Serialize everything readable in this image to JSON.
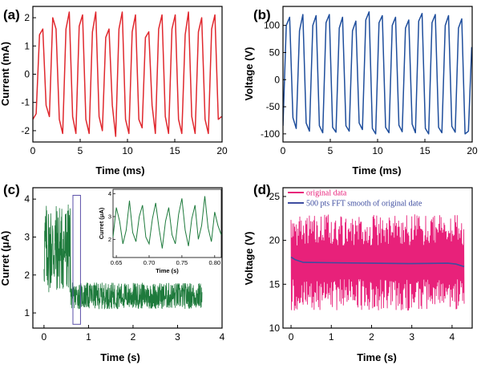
{
  "chart_data": [
    {
      "id": "a",
      "panel_label": "(a)",
      "type": "line",
      "xlabel": "Time (ms)",
      "ylabel": "Current (mA)",
      "xlim": [
        0,
        20
      ],
      "ylim": [
        -2.4,
        2.4
      ],
      "xticks": [
        0,
        5,
        10,
        15,
        20
      ],
      "yticks": [
        -2,
        -1,
        0,
        1,
        2
      ],
      "series": [
        {
          "color": "#e0282e",
          "x": [
            0,
            0.35,
            0.7,
            1.05,
            1.4,
            1.75,
            2.1,
            2.45,
            2.8,
            3.15,
            3.5,
            3.85,
            4.2,
            4.55,
            4.9,
            5.25,
            5.6,
            5.95,
            6.3,
            6.65,
            7.0,
            7.35,
            7.7,
            8.05,
            8.4,
            8.75,
            9.1,
            9.45,
            9.8,
            10.15,
            10.5,
            10.85,
            11.2,
            11.55,
            11.9,
            12.25,
            12.6,
            12.95,
            13.3,
            13.65,
            14.0,
            14.35,
            14.7,
            15.05,
            15.4,
            15.75,
            16.1,
            16.45,
            16.8,
            17.15,
            17.5,
            17.85,
            18.2,
            18.55,
            18.9,
            19.25,
            19.6,
            19.95
          ],
          "y": [
            -1.6,
            -1.4,
            1.4,
            1.6,
            -1.1,
            -1.5,
            2.0,
            1.6,
            -1.6,
            -2.1,
            1.6,
            2.2,
            -1.5,
            -2.1,
            1.7,
            2.1,
            -1.6,
            -2.1,
            1.5,
            2.2,
            -1.5,
            -2.0,
            1.3,
            1.6,
            -1.1,
            -2.2,
            1.6,
            2.2,
            -1.6,
            -2.1,
            1.5,
            2.1,
            -1.6,
            -1.9,
            1.3,
            1.5,
            -1.1,
            -2.1,
            1.6,
            2.1,
            -1.5,
            -2.1,
            1.6,
            2.1,
            -1.6,
            -2.1,
            1.4,
            2.2,
            -1.5,
            -2.1,
            1.5,
            2.0,
            -1.6,
            -2.1,
            1.6,
            2.1,
            -1.6,
            -1.5
          ]
        }
      ]
    },
    {
      "id": "b",
      "panel_label": "(b)",
      "type": "line",
      "xlabel": "Time (ms)",
      "ylabel": "Voltage (V)",
      "xlim": [
        0,
        20
      ],
      "ylim": [
        -115,
        135
      ],
      "xticks": [
        0,
        5,
        10,
        15,
        20
      ],
      "yticks": [
        -100,
        -50,
        0,
        50,
        100
      ],
      "series": [
        {
          "color": "#1f4e9c",
          "x": [
            0,
            0.35,
            0.7,
            1.05,
            1.4,
            1.75,
            2.1,
            2.45,
            2.8,
            3.15,
            3.5,
            3.85,
            4.2,
            4.55,
            4.9,
            5.25,
            5.6,
            5.95,
            6.3,
            6.65,
            7.0,
            7.35,
            7.7,
            8.05,
            8.4,
            8.75,
            9.1,
            9.45,
            9.8,
            10.15,
            10.5,
            10.85,
            11.2,
            11.55,
            11.9,
            12.25,
            12.6,
            12.95,
            13.3,
            13.65,
            14.0,
            14.35,
            14.7,
            15.05,
            15.4,
            15.75,
            16.1,
            16.45,
            16.8,
            17.15,
            17.5,
            17.85,
            18.2,
            18.55,
            18.9,
            19.25,
            19.6,
            19.95
          ],
          "y": [
            -85,
            100,
            115,
            -70,
            -90,
            90,
            120,
            -80,
            -95,
            100,
            118,
            -85,
            -98,
            105,
            120,
            -88,
            -97,
            95,
            115,
            -85,
            -95,
            90,
            108,
            -80,
            -92,
            110,
            125,
            -90,
            -100,
            105,
            118,
            -88,
            -98,
            100,
            115,
            -84,
            -96,
            95,
            110,
            -82,
            -98,
            108,
            122,
            -90,
            -100,
            105,
            120,
            -88,
            -98,
            100,
            118,
            -86,
            -97,
            95,
            112,
            -100,
            -95,
            60
          ]
        }
      ]
    },
    {
      "id": "c",
      "panel_label": "(c)",
      "type": "line",
      "xlabel": "Time (s)",
      "ylabel": "Curret (μA)",
      "xlim": [
        -0.25,
        4
      ],
      "ylim": [
        0.6,
        4.3
      ],
      "xticks": [
        0,
        1,
        2,
        3,
        4
      ],
      "yticks": [
        1,
        2,
        3,
        4
      ],
      "series": [
        {
          "color": "#1e7a3c",
          "segments": [
            {
              "x_start": 0.0,
              "x_end": 0.6,
              "center": 2.7,
              "amp": 1.2
            },
            {
              "x_start": 0.6,
              "x_end": 3.55,
              "center": 1.45,
              "amp": 0.35
            }
          ]
        }
      ],
      "highlight_box": {
        "x_range": [
          0.65,
          0.82
        ],
        "y_range": [
          0.7,
          4.1
        ],
        "color": "#5b4fa8"
      },
      "inset": {
        "xlabel": "Time (s)",
        "ylabel": "Curret (μA)",
        "xlim": [
          0.645,
          0.81
        ],
        "ylim": [
          1.2,
          4.2
        ],
        "xticks": [
          0.65,
          0.7,
          0.75,
          0.8
        ],
        "xtick_labels": [
          "0.65",
          "0.70",
          "0.75",
          "0.80"
        ],
        "yticks": [
          2,
          3,
          4
        ],
        "color": "#1e7a3c",
        "x": [
          0.645,
          0.65,
          0.655,
          0.66,
          0.665,
          0.67,
          0.675,
          0.68,
          0.685,
          0.69,
          0.695,
          0.7,
          0.705,
          0.71,
          0.715,
          0.72,
          0.725,
          0.73,
          0.735,
          0.74,
          0.745,
          0.75,
          0.755,
          0.76,
          0.765,
          0.77,
          0.775,
          0.78,
          0.785,
          0.79,
          0.795,
          0.8,
          0.805,
          0.81
        ],
        "y": [
          2.1,
          3.4,
          2.8,
          1.8,
          2.4,
          3.7,
          2.3,
          1.9,
          3.0,
          3.5,
          2.1,
          1.8,
          2.9,
          3.6,
          2.5,
          1.6,
          2.8,
          3.4,
          2.2,
          1.8,
          3.1,
          3.8,
          2.4,
          1.7,
          2.9,
          3.5,
          2.0,
          2.6,
          3.9,
          2.5,
          1.9,
          3.2,
          2.6,
          2.2
        ]
      }
    },
    {
      "id": "d",
      "panel_label": "(d)",
      "type": "line",
      "xlabel": "Time (s)",
      "ylabel": "Voltage (V)",
      "xlim": [
        -0.2,
        4.5
      ],
      "ylim": [
        10,
        26
      ],
      "xticks": [
        0,
        1,
        2,
        3,
        4
      ],
      "yticks": [
        10,
        15,
        20,
        25
      ],
      "legend": {
        "placement": "top",
        "entries": [
          {
            "label": "original data",
            "color": "#e8217a"
          },
          {
            "label": "500 pts FFT smooth of original date",
            "color": "#3e4da0"
          }
        ]
      },
      "series": [
        {
          "name": "original data",
          "color": "#e8217a",
          "x_start": 0,
          "x_end": 4.3,
          "center": 17.5,
          "amp": 5.5
        },
        {
          "name": "500 pts FFT smooth of original date",
          "color": "#3e4da0",
          "x": [
            0,
            0.1,
            0.3,
            1.0,
            2.0,
            3.0,
            3.9,
            4.1,
            4.3
          ],
          "y": [
            18.1,
            17.8,
            17.5,
            17.45,
            17.4,
            17.35,
            17.4,
            17.3,
            17.0
          ]
        }
      ]
    }
  ]
}
